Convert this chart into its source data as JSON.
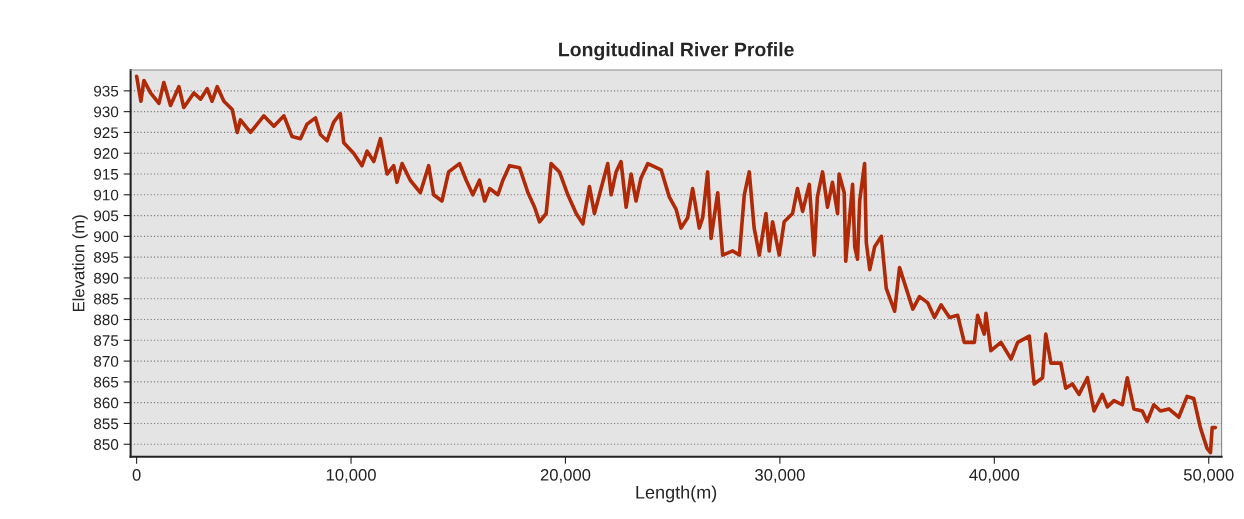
{
  "chart_data": {
    "type": "line",
    "title": "Longitudinal River Profile",
    "xlabel": "Length(m)",
    "ylabel": "Elevation (m)",
    "xlim": [
      -280,
      50600
    ],
    "ylim": [
      847,
      940
    ],
    "xticks": [
      {
        "value": 0,
        "label": "0"
      },
      {
        "value": 10000,
        "label": "10,000"
      },
      {
        "value": 20000,
        "label": "20,000"
      },
      {
        "value": 30000,
        "label": "30,000"
      },
      {
        "value": 40000,
        "label": "40,000"
      },
      {
        "value": 50000,
        "label": "50,000"
      }
    ],
    "yticks": [
      850,
      855,
      860,
      865,
      870,
      875,
      880,
      885,
      890,
      895,
      900,
      905,
      910,
      915,
      920,
      925,
      930,
      935
    ],
    "grid": "y",
    "legend": false,
    "line_style": "solid",
    "marker": "none",
    "series": [
      {
        "color": "#b02a08",
        "x": [
          0,
          200,
          340,
          650,
          1040,
          1270,
          1580,
          1970,
          2200,
          2670,
          2980,
          3290,
          3520,
          3760,
          4070,
          4460,
          4690,
          4840,
          5310,
          5930,
          6400,
          6870,
          7250,
          7640,
          7950,
          8340,
          8570,
          8880,
          9190,
          9500,
          9660,
          10120,
          10510,
          10750,
          11060,
          11370,
          11680,
          11990,
          12140,
          12380,
          12760,
          13230,
          13620,
          13850,
          14240,
          14550,
          15060,
          15370,
          15680,
          15990,
          16230,
          16460,
          16850,
          17080,
          17390,
          17860,
          18250,
          18560,
          18790,
          19100,
          19330,
          19720,
          20110,
          20500,
          20810,
          21120,
          21350,
          21660,
          21970,
          22130,
          22360,
          22590,
          22830,
          23060,
          23290,
          23520,
          23840,
          24460,
          24840,
          25160,
          25390,
          25700,
          25930,
          26240,
          26400,
          26630,
          26790,
          27100,
          27330,
          27800,
          28110,
          28340,
          28570,
          28800,
          29040,
          29350,
          29500,
          29660,
          29970,
          30200,
          30590,
          30820,
          31060,
          31370,
          31600,
          31750,
          31990,
          32220,
          32450,
          32690,
          32760,
          33000,
          33070,
          33390,
          33490,
          33620,
          33720,
          33950,
          34030,
          34190,
          34420,
          34730,
          34960,
          35350,
          35580,
          35890,
          36200,
          36510,
          36900,
          37210,
          37520,
          37910,
          38290,
          38600,
          39070,
          39220,
          39530,
          39610,
          39840,
          40310,
          40780,
          41090,
          41630,
          41860,
          42250,
          42400,
          42640,
          43100,
          43330,
          43640,
          43950,
          44340,
          44650,
          45040,
          45270,
          45580,
          45970,
          46200,
          46510,
          46900,
          47130,
          47440,
          47750,
          48140,
          48600,
          48990,
          49300,
          49610,
          49920,
          50080,
          50160,
          50310
        ],
        "values": [
          938.5,
          932.5,
          937.5,
          934.5,
          932,
          937,
          931.5,
          936,
          931,
          934.5,
          933,
          935.5,
          932.5,
          936,
          932.5,
          930.5,
          925,
          928,
          925,
          929,
          926.5,
          929,
          924,
          923.5,
          927,
          928.5,
          924.5,
          923,
          927.5,
          929.5,
          922.5,
          920,
          917,
          920.5,
          918,
          923.5,
          915,
          917,
          913,
          917.5,
          913.5,
          910.5,
          917,
          910,
          908.5,
          915.5,
          917.5,
          913.5,
          910,
          913.5,
          908.5,
          911.5,
          910,
          913.5,
          917,
          916.5,
          910.5,
          907,
          903.5,
          905.5,
          917.5,
          915.5,
          910,
          905.5,
          903,
          912,
          905.5,
          911.5,
          917.5,
          910,
          915.5,
          918,
          907,
          915,
          908.5,
          914,
          917.5,
          916,
          909.5,
          906.5,
          902,
          904.5,
          911.5,
          902,
          904.5,
          915.5,
          899.5,
          910.5,
          895.5,
          896.5,
          895.5,
          910,
          915.5,
          902,
          895.5,
          905.5,
          896.5,
          903.5,
          895.5,
          903.5,
          905.5,
          911.5,
          906,
          912.5,
          895.5,
          909.5,
          915.5,
          907,
          913,
          905.5,
          915,
          910.5,
          894,
          912.5,
          897.5,
          894.5,
          908.5,
          917.5,
          898.5,
          892,
          897.5,
          900,
          887.5,
          882,
          892.5,
          887.5,
          882.5,
          885.5,
          884,
          880.5,
          883.5,
          880.5,
          881,
          874.5,
          874.5,
          881,
          876.5,
          881.5,
          872.5,
          874.5,
          870.5,
          874.5,
          876,
          864.5,
          866,
          876.5,
          869.5,
          869.5,
          863.5,
          864.5,
          862,
          866,
          858,
          862,
          859,
          860.5,
          859.5,
          866,
          858.5,
          858,
          855.5,
          859.5,
          858,
          858.5,
          856.5,
          861.5,
          861,
          854,
          849,
          848,
          854,
          854
        ]
      }
    ]
  }
}
